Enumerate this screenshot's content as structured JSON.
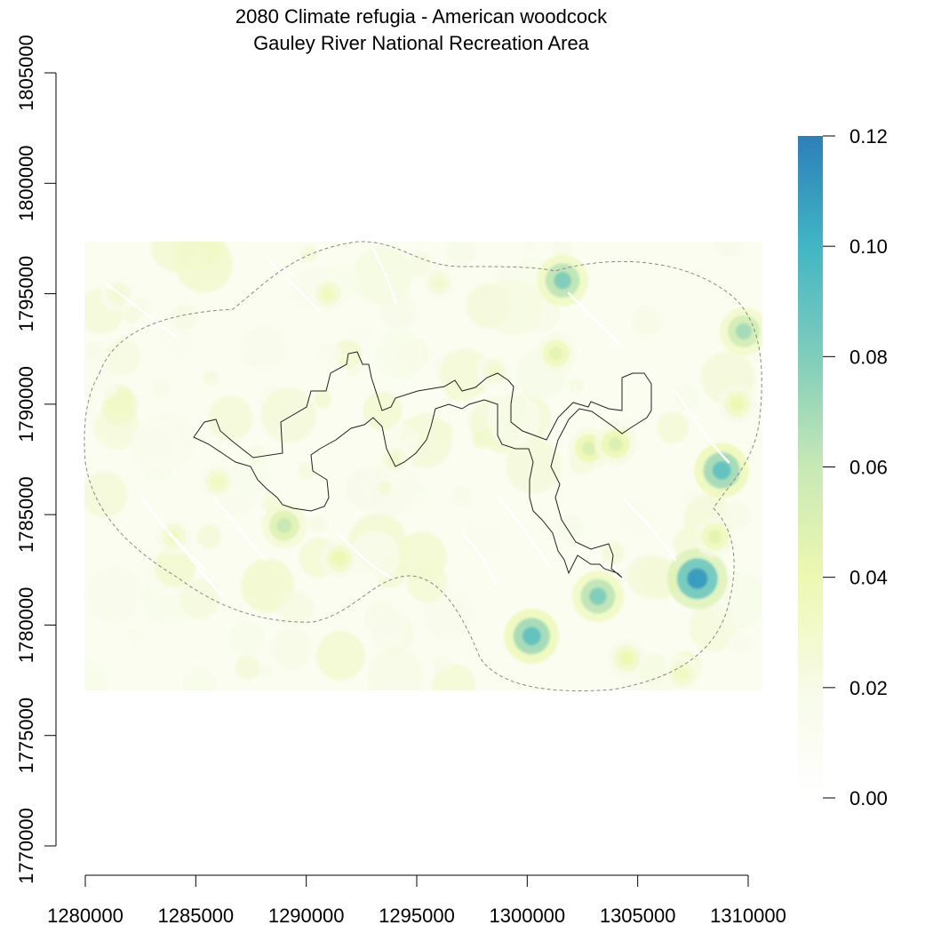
{
  "title": {
    "line1": "2080 Climate refugia - American woodcock",
    "line2": "Gauley River National Recreation Area"
  },
  "map": {
    "x_ticks": [
      "1280000",
      "1285000",
      "1290000",
      "1295000",
      "1300000",
      "1305000",
      "1310000"
    ],
    "y_ticks": [
      "1770000",
      "1775000",
      "1780000",
      "1785000",
      "1790000",
      "1795000",
      "1800000",
      "1805000"
    ],
    "x_range": [
      1280000,
      1310000
    ],
    "y_range": [
      1770000,
      1805000
    ],
    "raster_extent": {
      "x": [
        1280000,
        1310500
      ],
      "y": [
        1777000,
        1797200
      ]
    }
  },
  "legend": {
    "ticks": [
      "0.00",
      "0.02",
      "0.04",
      "0.06",
      "0.08",
      "0.10",
      "0.12"
    ],
    "range": [
      0,
      0.12
    ],
    "colors": [
      "#ffffff",
      "#f7fbe6",
      "#edf8b1",
      "#c7e9b4",
      "#7fcdbb",
      "#41b6c4",
      "#2c7fb8"
    ]
  },
  "colors": {
    "boundary": "#222222",
    "buffer": "#888888",
    "hotspot_high": "#4aa9c6",
    "hotspot_mid": "#9fd6b8",
    "hotspot_low": "#e4f3b5"
  },
  "chart_data": {
    "type": "heatmap",
    "title": "2080 Climate refugia - American woodcock",
    "subtitle": "Gauley River National Recreation Area",
    "xlim": [
      1280000,
      1310000
    ],
    "ylim": [
      1770000,
      1805000
    ],
    "value_range": [
      0,
      0.12
    ],
    "hotspots": [
      {
        "x": 1307700,
        "y": 1782100,
        "value": 0.11
      },
      {
        "x": 1308800,
        "y": 1787000,
        "value": 0.09
      },
      {
        "x": 1300200,
        "y": 1779500,
        "value": 0.09
      },
      {
        "x": 1303200,
        "y": 1781300,
        "value": 0.08
      },
      {
        "x": 1301600,
        "y": 1795600,
        "value": 0.08
      },
      {
        "x": 1309800,
        "y": 1793300,
        "value": 0.07
      },
      {
        "x": 1289000,
        "y": 1784500,
        "value": 0.06
      },
      {
        "x": 1302800,
        "y": 1788000,
        "value": 0.05
      },
      {
        "x": 1304000,
        "y": 1788200,
        "value": 0.05
      },
      {
        "x": 1301300,
        "y": 1792300,
        "value": 0.045
      },
      {
        "x": 1308500,
        "y": 1784000,
        "value": 0.045
      },
      {
        "x": 1291500,
        "y": 1783000,
        "value": 0.04
      },
      {
        "x": 1291000,
        "y": 1795000,
        "value": 0.035
      },
      {
        "x": 1286000,
        "y": 1786500,
        "value": 0.035
      },
      {
        "x": 1298500,
        "y": 1791500,
        "value": 0.03
      },
      {
        "x": 1296000,
        "y": 1795500,
        "value": 0.03
      },
      {
        "x": 1304500,
        "y": 1778500,
        "value": 0.04
      },
      {
        "x": 1307000,
        "y": 1777800,
        "value": 0.035
      },
      {
        "x": 1284000,
        "y": 1784000,
        "value": 0.035
      },
      {
        "x": 1281500,
        "y": 1795000,
        "value": 0.03
      },
      {
        "x": 1309500,
        "y": 1790000,
        "value": 0.04
      },
      {
        "x": 1294000,
        "y": 1787500,
        "value": 0.03
      }
    ]
  }
}
